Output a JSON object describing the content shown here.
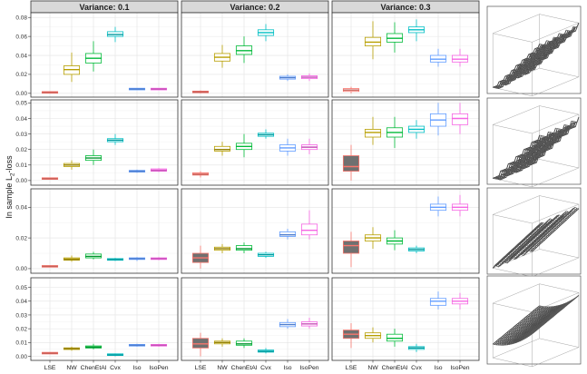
{
  "chart_data": {
    "type": "box",
    "ylabel": "In sample L",
    "ylabel_sub": "2",
    "ylabel_suffix": "-loss",
    "columns": [
      "Variance: 0.1",
      "Variance: 0.2",
      "Variance: 0.3"
    ],
    "categories": [
      "LSE",
      "NW",
      "ChenEtAl",
      "Cvx",
      "Iso",
      "IsoPen"
    ],
    "colors": [
      "#F8766D",
      "#B79F00",
      "#00BA38",
      "#00BFC4",
      "#619CFF",
      "#F564E3"
    ],
    "grid": true,
    "rows": [
      {
        "ylim": [
          -0.004,
          0.085
        ],
        "yticks": [
          0.0,
          0.02,
          0.04,
          0.06,
          0.08
        ],
        "ytick_labels": [
          "0.00",
          "0.02",
          "0.04",
          "0.06",
          "0.08"
        ],
        "panels": [
          [
            {
              "min": 0.0,
              "q1": 0.0005,
              "med": 0.001,
              "q3": 0.0015,
              "max": 0.002
            },
            {
              "min": 0.012,
              "q1": 0.02,
              "med": 0.025,
              "q3": 0.029,
              "max": 0.043
            },
            {
              "min": 0.023,
              "q1": 0.032,
              "med": 0.037,
              "q3": 0.042,
              "max": 0.055
            },
            {
              "min": 0.054,
              "q1": 0.06,
              "med": 0.062,
              "q3": 0.065,
              "max": 0.07
            },
            {
              "min": 0.0035,
              "q1": 0.004,
              "med": 0.0045,
              "q3": 0.005,
              "max": 0.0055
            },
            {
              "min": 0.0035,
              "q1": 0.004,
              "med": 0.0045,
              "q3": 0.005,
              "max": 0.0055
            }
          ],
          [
            {
              "min": 0.0,
              "q1": 0.001,
              "med": 0.0015,
              "q3": 0.002,
              "max": 0.003
            },
            {
              "min": 0.027,
              "q1": 0.034,
              "med": 0.038,
              "q3": 0.042,
              "max": 0.051
            },
            {
              "min": 0.032,
              "q1": 0.041,
              "med": 0.045,
              "q3": 0.05,
              "max": 0.06
            },
            {
              "min": 0.055,
              "q1": 0.061,
              "med": 0.064,
              "q3": 0.067,
              "max": 0.073
            },
            {
              "min": 0.013,
              "q1": 0.015,
              "med": 0.0165,
              "q3": 0.018,
              "max": 0.02
            },
            {
              "min": 0.013,
              "q1": 0.0155,
              "med": 0.017,
              "q3": 0.0185,
              "max": 0.021
            }
          ],
          [
            {
              "min": 0.0,
              "q1": 0.002,
              "med": 0.0035,
              "q3": 0.005,
              "max": 0.007
            },
            {
              "min": 0.036,
              "q1": 0.05,
              "med": 0.054,
              "q3": 0.059,
              "max": 0.076
            },
            {
              "min": 0.043,
              "q1": 0.054,
              "med": 0.058,
              "q3": 0.063,
              "max": 0.075
            },
            {
              "min": 0.055,
              "q1": 0.064,
              "med": 0.067,
              "q3": 0.07,
              "max": 0.078
            },
            {
              "min": 0.028,
              "q1": 0.033,
              "med": 0.036,
              "q3": 0.04,
              "max": 0.047
            },
            {
              "min": 0.028,
              "q1": 0.033,
              "med": 0.036,
              "q3": 0.04,
              "max": 0.047
            }
          ]
        ]
      },
      {
        "ylim": [
          -0.003,
          0.052
        ],
        "yticks": [
          0.0,
          0.01,
          0.02,
          0.03,
          0.04,
          0.05
        ],
        "ytick_labels": [
          "0.00",
          "0.01",
          "0.02",
          "0.03",
          "0.04",
          "0.05"
        ],
        "panels": [
          [
            {
              "min": 0.0005,
              "q1": 0.001,
              "med": 0.0012,
              "q3": 0.0015,
              "max": 0.002
            },
            {
              "min": 0.007,
              "q1": 0.009,
              "med": 0.01,
              "q3": 0.011,
              "max": 0.013
            },
            {
              "min": 0.01,
              "q1": 0.013,
              "med": 0.0145,
              "q3": 0.016,
              "max": 0.02
            },
            {
              "min": 0.023,
              "q1": 0.025,
              "med": 0.026,
              "q3": 0.027,
              "max": 0.03
            },
            {
              "min": 0.005,
              "q1": 0.0055,
              "med": 0.006,
              "q3": 0.0065,
              "max": 0.007
            },
            {
              "min": 0.0055,
              "q1": 0.006,
              "med": 0.0065,
              "q3": 0.0075,
              "max": 0.008
            }
          ],
          [
            {
              "min": 0.002,
              "q1": 0.0035,
              "med": 0.004,
              "q3": 0.005,
              "max": 0.006
            },
            {
              "min": 0.016,
              "q1": 0.019,
              "med": 0.02,
              "q3": 0.022,
              "max": 0.025
            },
            {
              "min": 0.015,
              "q1": 0.02,
              "med": 0.022,
              "q3": 0.024,
              "max": 0.03
            },
            {
              "min": 0.027,
              "q1": 0.0285,
              "med": 0.0295,
              "q3": 0.0305,
              "max": 0.033
            },
            {
              "min": 0.016,
              "q1": 0.019,
              "med": 0.021,
              "q3": 0.023,
              "max": 0.027
            },
            {
              "min": 0.017,
              "q1": 0.02,
              "med": 0.0215,
              "q3": 0.023,
              "max": 0.027
            }
          ],
          [
            {
              "min": 0.0,
              "q1": 0.006,
              "med": 0.009,
              "q3": 0.016,
              "max": 0.023
            },
            {
              "min": 0.023,
              "q1": 0.028,
              "med": 0.031,
              "q3": 0.033,
              "max": 0.041
            },
            {
              "min": 0.021,
              "q1": 0.028,
              "med": 0.031,
              "q3": 0.034,
              "max": 0.041
            },
            {
              "min": 0.027,
              "q1": 0.031,
              "med": 0.033,
              "q3": 0.035,
              "max": 0.039
            },
            {
              "min": 0.029,
              "q1": 0.035,
              "med": 0.039,
              "q3": 0.043,
              "max": 0.05
            },
            {
              "min": 0.03,
              "q1": 0.036,
              "med": 0.04,
              "q3": 0.043,
              "max": 0.05
            }
          ]
        ]
      },
      {
        "ylim": [
          -0.003,
          0.052
        ],
        "yticks": [
          0.0,
          0.02,
          0.04
        ],
        "ytick_labels": [
          "0.00",
          "0.02",
          "0.04"
        ],
        "panels": [
          [
            {
              "min": 0.001,
              "q1": 0.0013,
              "med": 0.0015,
              "q3": 0.0017,
              "max": 0.002
            },
            {
              "min": 0.0045,
              "q1": 0.0055,
              "med": 0.006,
              "q3": 0.007,
              "max": 0.0085
            },
            {
              "min": 0.006,
              "q1": 0.007,
              "med": 0.008,
              "q3": 0.0095,
              "max": 0.011
            },
            {
              "min": 0.005,
              "q1": 0.0055,
              "med": 0.006,
              "q3": 0.0065,
              "max": 0.007
            },
            {
              "min": 0.005,
              "q1": 0.006,
              "med": 0.0065,
              "q3": 0.007,
              "max": 0.0075
            },
            {
              "min": 0.0055,
              "q1": 0.006,
              "med": 0.0065,
              "q3": 0.007,
              "max": 0.0075
            }
          ],
          [
            {
              "min": 0.0,
              "q1": 0.004,
              "med": 0.007,
              "q3": 0.01,
              "max": 0.015
            },
            {
              "min": 0.01,
              "q1": 0.012,
              "med": 0.013,
              "q3": 0.014,
              "max": 0.016
            },
            {
              "min": 0.01,
              "q1": 0.012,
              "med": 0.013,
              "q3": 0.015,
              "max": 0.017
            },
            {
              "min": 0.007,
              "q1": 0.008,
              "med": 0.009,
              "q3": 0.01,
              "max": 0.011
            },
            {
              "min": 0.019,
              "q1": 0.021,
              "med": 0.022,
              "q3": 0.024,
              "max": 0.026
            },
            {
              "min": 0.019,
              "q1": 0.022,
              "med": 0.025,
              "q3": 0.029,
              "max": 0.038
            }
          ],
          [
            {
              "min": 0.001,
              "q1": 0.01,
              "med": 0.015,
              "q3": 0.018,
              "max": 0.024
            },
            {
              "min": 0.013,
              "q1": 0.018,
              "med": 0.02,
              "q3": 0.022,
              "max": 0.027
            },
            {
              "min": 0.012,
              "q1": 0.016,
              "med": 0.018,
              "q3": 0.02,
              "max": 0.025
            },
            {
              "min": 0.01,
              "q1": 0.0115,
              "med": 0.0125,
              "q3": 0.0135,
              "max": 0.015
            },
            {
              "min": 0.034,
              "q1": 0.038,
              "med": 0.04,
              "q3": 0.042,
              "max": 0.047
            },
            {
              "min": 0.034,
              "q1": 0.038,
              "med": 0.04,
              "q3": 0.042,
              "max": 0.048
            }
          ]
        ]
      },
      {
        "ylim": [
          -0.003,
          0.057
        ],
        "yticks": [
          0.0,
          0.01,
          0.02,
          0.03,
          0.04,
          0.05
        ],
        "ytick_labels": [
          "0.00",
          "0.01",
          "0.02",
          "0.03",
          "0.04",
          "0.05"
        ],
        "panels": [
          [
            {
              "min": 0.0015,
              "q1": 0.002,
              "med": 0.0022,
              "q3": 0.0025,
              "max": 0.003
            },
            {
              "min": 0.004,
              "q1": 0.005,
              "med": 0.0055,
              "q3": 0.006,
              "max": 0.007
            },
            {
              "min": 0.005,
              "q1": 0.006,
              "med": 0.0065,
              "q3": 0.0075,
              "max": 0.009
            },
            {
              "min": 0.0,
              "q1": 0.0008,
              "med": 0.001,
              "q3": 0.0015,
              "max": 0.002
            },
            {
              "min": 0.007,
              "q1": 0.0075,
              "med": 0.008,
              "q3": 0.0085,
              "max": 0.009
            },
            {
              "min": 0.007,
              "q1": 0.0075,
              "med": 0.008,
              "q3": 0.0085,
              "max": 0.009
            }
          ],
          [
            {
              "min": 0.0,
              "q1": 0.006,
              "med": 0.009,
              "q3": 0.013,
              "max": 0.017
            },
            {
              "min": 0.007,
              "q1": 0.009,
              "med": 0.01,
              "q3": 0.011,
              "max": 0.013
            },
            {
              "min": 0.006,
              "q1": 0.008,
              "med": 0.009,
              "q3": 0.011,
              "max": 0.013
            },
            {
              "min": 0.002,
              "q1": 0.003,
              "med": 0.0035,
              "q3": 0.0045,
              "max": 0.006
            },
            {
              "min": 0.02,
              "q1": 0.0215,
              "med": 0.023,
              "q3": 0.0245,
              "max": 0.027
            },
            {
              "min": 0.02,
              "q1": 0.022,
              "med": 0.0235,
              "q3": 0.025,
              "max": 0.028
            }
          ],
          [
            {
              "min": 0.006,
              "q1": 0.013,
              "med": 0.016,
              "q3": 0.019,
              "max": 0.024
            },
            {
              "min": 0.01,
              "q1": 0.013,
              "med": 0.015,
              "q3": 0.017,
              "max": 0.021
            },
            {
              "min": 0.007,
              "q1": 0.011,
              "med": 0.013,
              "q3": 0.016,
              "max": 0.02
            },
            {
              "min": 0.003,
              "q1": 0.005,
              "med": 0.006,
              "q3": 0.007,
              "max": 0.009
            },
            {
              "min": 0.034,
              "q1": 0.037,
              "med": 0.04,
              "q3": 0.042,
              "max": 0.047
            },
            {
              "min": 0.034,
              "q1": 0.038,
              "med": 0.04,
              "q3": 0.042,
              "max": 0.046
            }
          ]
        ]
      }
    ]
  }
}
